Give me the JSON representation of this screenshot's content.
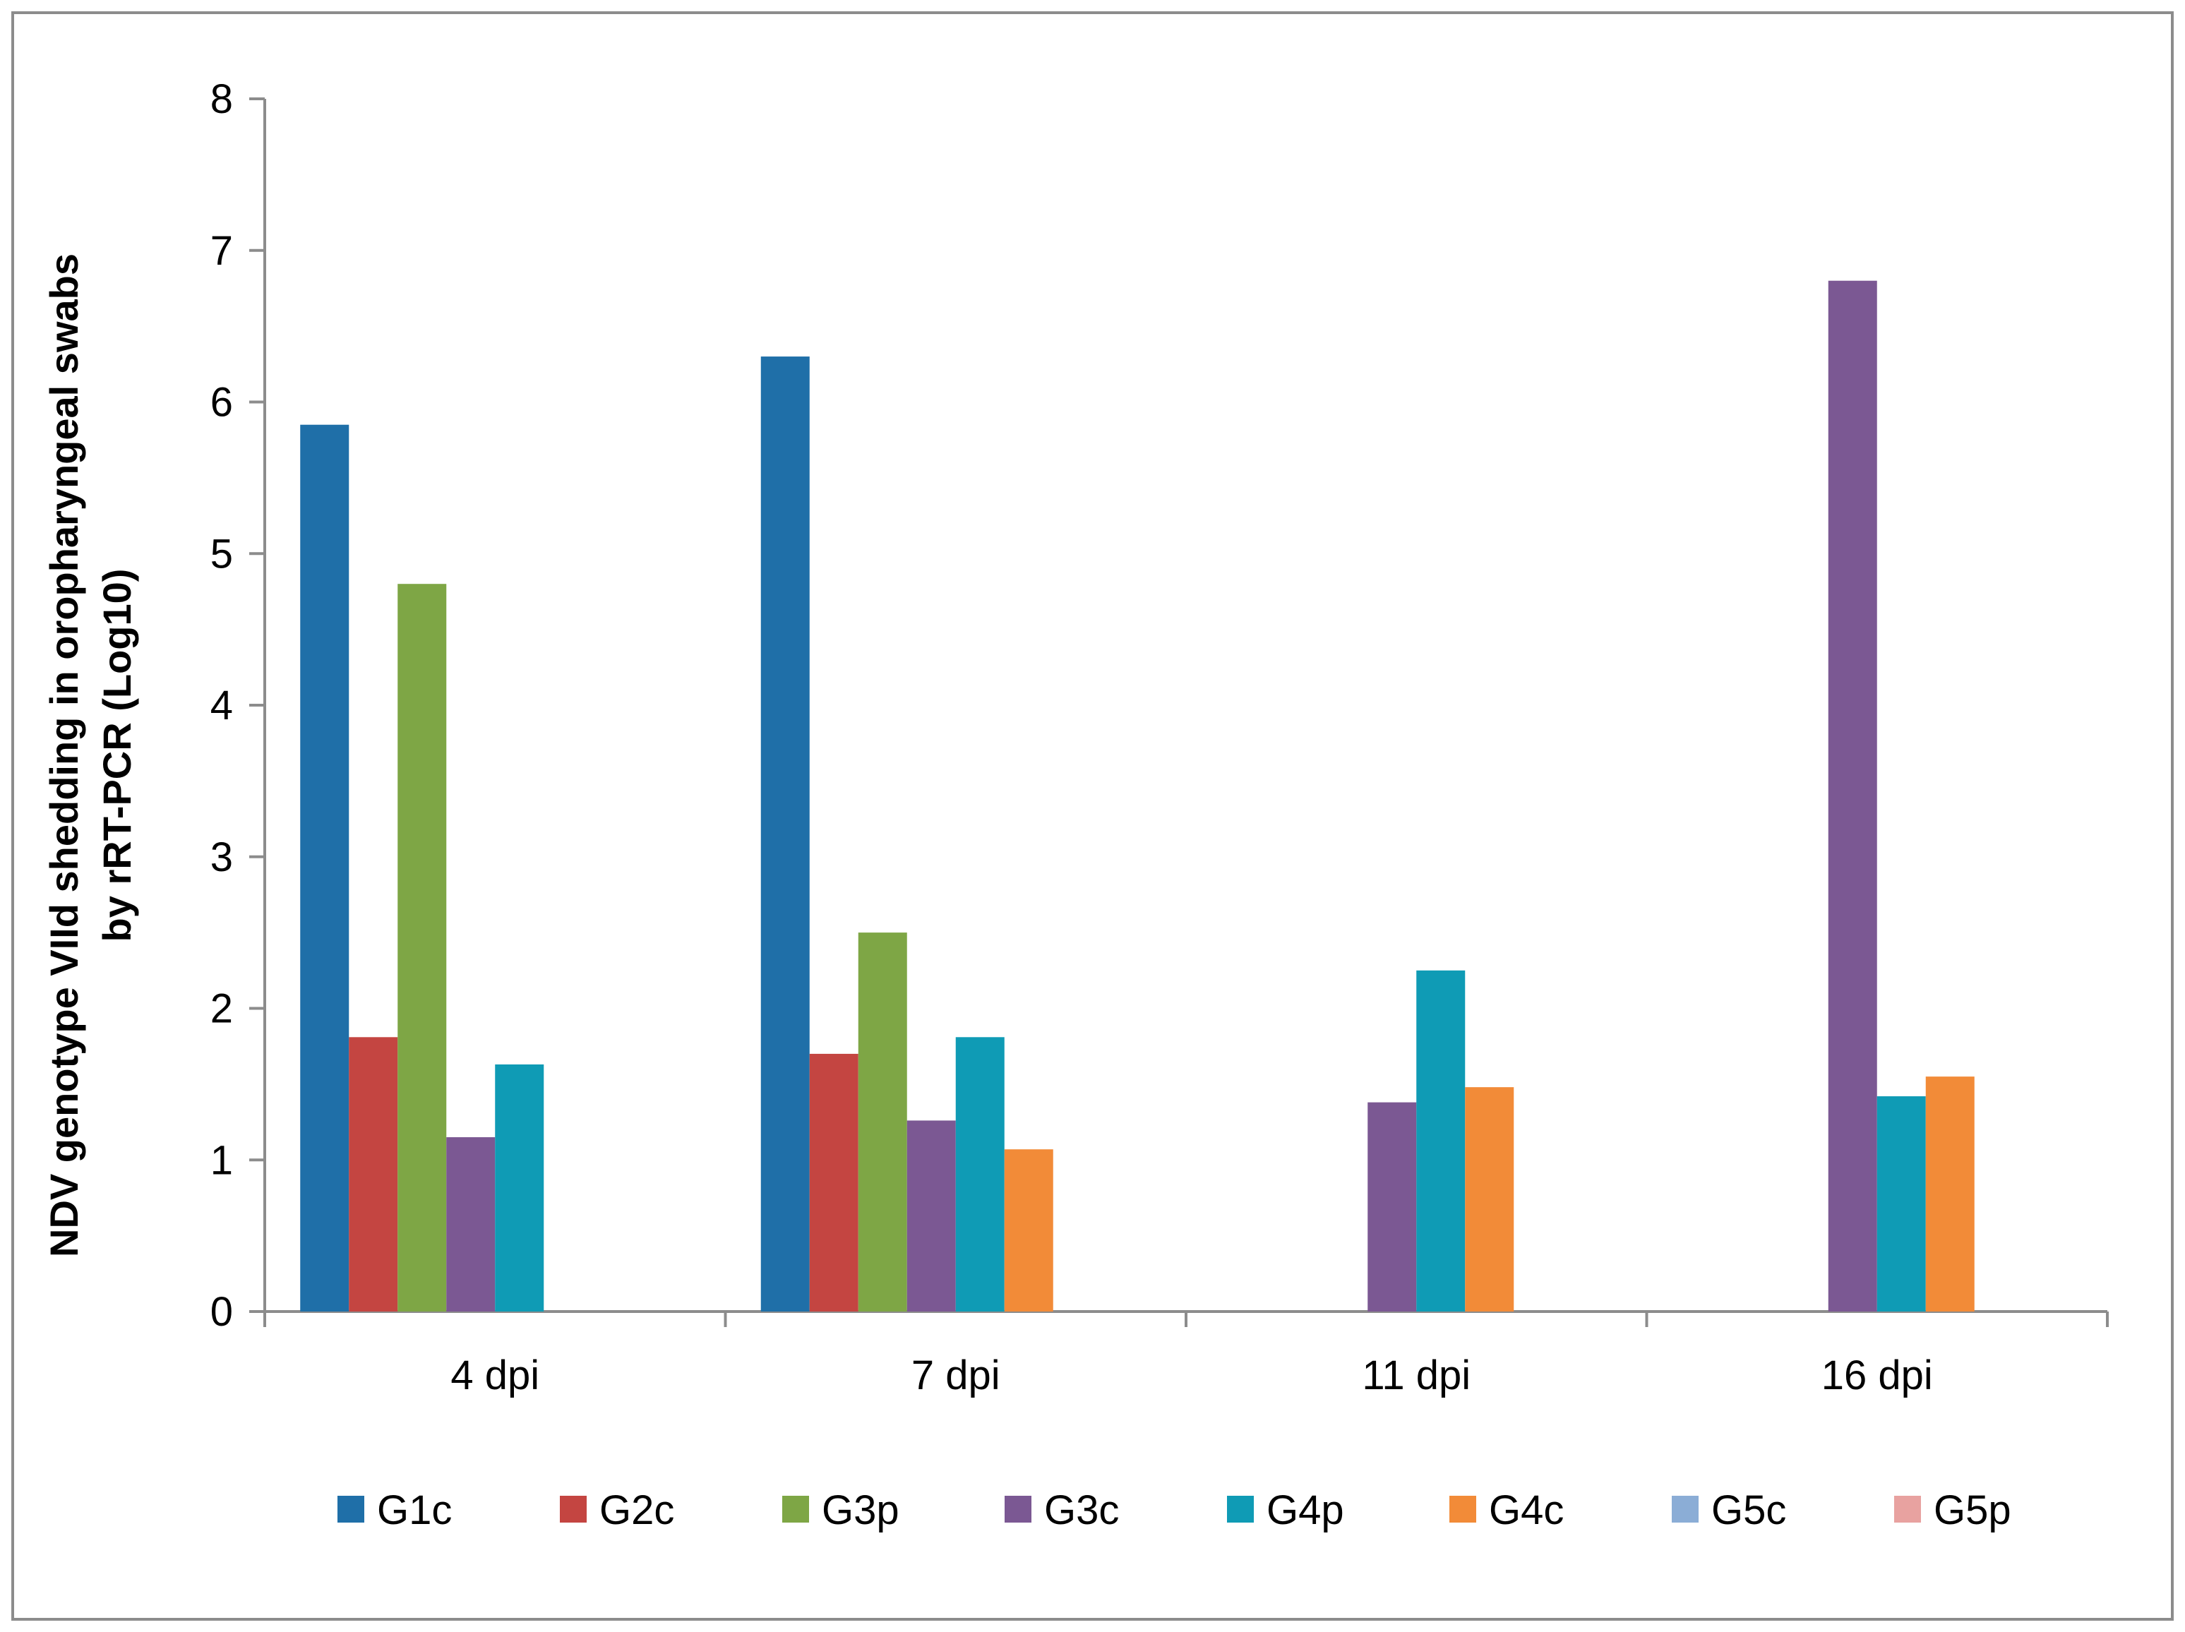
{
  "chart_data": {
    "type": "bar",
    "title": "",
    "xlabel": "",
    "ylabel_lines": [
      "NDV genotype VIId shedding in oropharyngeal swabs",
      "by rRT-PCR (Log10)"
    ],
    "categories": [
      "4 dpi",
      "7 dpi",
      "11 dpi",
      "16 dpi"
    ],
    "ylim": [
      0,
      8
    ],
    "yticks": [
      0,
      1,
      2,
      3,
      4,
      5,
      6,
      7,
      8
    ],
    "grid": false,
    "legend_position": "bottom",
    "series": [
      {
        "name": "G1c",
        "color": "#1f6fa8",
        "values": [
          5.85,
          6.3,
          0,
          0
        ]
      },
      {
        "name": "G2c",
        "color": "#c44541",
        "values": [
          1.81,
          1.7,
          0,
          0
        ]
      },
      {
        "name": "G3p",
        "color": "#7ea645",
        "values": [
          4.8,
          2.5,
          0,
          0
        ]
      },
      {
        "name": "G3c",
        "color": "#7b5893",
        "values": [
          1.15,
          1.26,
          1.38,
          6.8
        ]
      },
      {
        "name": "G4p",
        "color": "#0f9bb5",
        "values": [
          1.63,
          1.81,
          2.25,
          1.42
        ]
      },
      {
        "name": "G4c",
        "color": "#f28b38",
        "values": [
          0,
          1.07,
          1.48,
          1.55
        ]
      },
      {
        "name": "G5c",
        "color": "#8badd6",
        "values": [
          0,
          0,
          0,
          0
        ]
      },
      {
        "name": "G5p",
        "color": "#e8a2a0",
        "values": [
          0,
          0,
          0,
          0
        ]
      }
    ]
  }
}
